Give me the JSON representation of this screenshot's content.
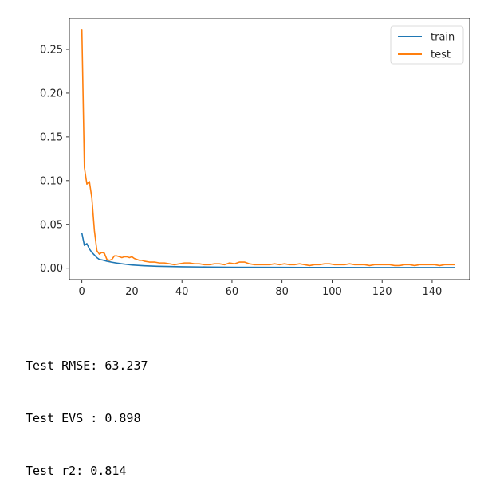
{
  "chart_data": {
    "type": "line",
    "title": "",
    "xlabel": "",
    "ylabel": "",
    "xlim": [
      -5,
      155
    ],
    "ylim": [
      -0.013,
      0.2855
    ],
    "xticks": [
      0,
      20,
      40,
      60,
      80,
      100,
      120,
      140
    ],
    "xtick_labels": [
      "0",
      "20",
      "40",
      "60",
      "80",
      "100",
      "120",
      "140"
    ],
    "yticks": [
      0.0,
      0.05,
      0.1,
      0.15,
      0.2,
      0.25
    ],
    "ytick_labels": [
      "0.00",
      "0.05",
      "0.10",
      "0.15",
      "0.20",
      "0.25"
    ],
    "grid": false,
    "legend_position": "top-right",
    "series": [
      {
        "name": "train",
        "color": "#1f77b4",
        "x": [
          0,
          1,
          2,
          3,
          4,
          5,
          6,
          7,
          8,
          9,
          10,
          12,
          14,
          16,
          18,
          20,
          25,
          30,
          40,
          50,
          60,
          80,
          100,
          120,
          140,
          149
        ],
        "y": [
          0.04,
          0.026,
          0.028,
          0.022,
          0.018,
          0.015,
          0.012,
          0.01,
          0.0095,
          0.0088,
          0.008,
          0.0068,
          0.0058,
          0.005,
          0.0043,
          0.0037,
          0.0028,
          0.0022,
          0.0016,
          0.0013,
          0.0011,
          0.0009,
          0.0008,
          0.0007,
          0.0007,
          0.0007
        ]
      },
      {
        "name": "test",
        "color": "#ff7f0e",
        "x": [
          0,
          1,
          2,
          3,
          4,
          5,
          6,
          7,
          8,
          9,
          10,
          11,
          12,
          13,
          14,
          15,
          16,
          17,
          18,
          19,
          20,
          21,
          22,
          23,
          24,
          25,
          27,
          29,
          31,
          33,
          35,
          37,
          39,
          41,
          43,
          45,
          47,
          49,
          51,
          53,
          55,
          57,
          59,
          61,
          63,
          65,
          67,
          69,
          71,
          73,
          75,
          77,
          79,
          81,
          83,
          85,
          87,
          89,
          91,
          93,
          95,
          97,
          99,
          101,
          103,
          105,
          107,
          109,
          111,
          113,
          115,
          117,
          119,
          121,
          123,
          125,
          127,
          129,
          131,
          133,
          135,
          137,
          139,
          141,
          143,
          145,
          147,
          149
        ],
        "y": [
          0.272,
          0.115,
          0.096,
          0.099,
          0.08,
          0.043,
          0.02,
          0.016,
          0.018,
          0.017,
          0.01,
          0.009,
          0.01,
          0.014,
          0.014,
          0.013,
          0.012,
          0.013,
          0.013,
          0.012,
          0.013,
          0.011,
          0.01,
          0.009,
          0.009,
          0.008,
          0.007,
          0.007,
          0.006,
          0.006,
          0.005,
          0.004,
          0.005,
          0.006,
          0.006,
          0.005,
          0.005,
          0.004,
          0.004,
          0.005,
          0.005,
          0.004,
          0.006,
          0.005,
          0.007,
          0.007,
          0.005,
          0.004,
          0.004,
          0.004,
          0.004,
          0.005,
          0.004,
          0.005,
          0.004,
          0.004,
          0.005,
          0.004,
          0.003,
          0.004,
          0.004,
          0.005,
          0.005,
          0.004,
          0.004,
          0.004,
          0.005,
          0.004,
          0.004,
          0.004,
          0.003,
          0.004,
          0.004,
          0.004,
          0.004,
          0.003,
          0.003,
          0.004,
          0.004,
          0.003,
          0.004,
          0.004,
          0.004,
          0.004,
          0.003,
          0.004,
          0.004,
          0.004
        ]
      }
    ]
  },
  "output_lines": {
    "rmse": "Test RMSE: 63.237",
    "evs": "Test EVS : 0.898",
    "r2": "Test r2: 0.814"
  }
}
